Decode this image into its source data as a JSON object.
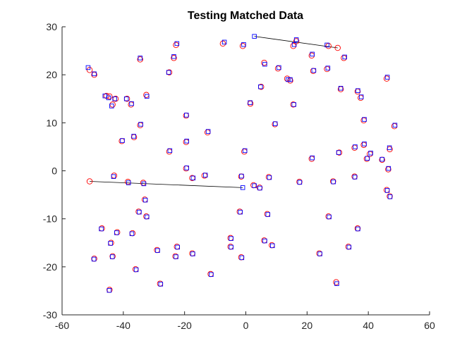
{
  "chart_data": {
    "type": "scatter",
    "title": "Testing Matched Data",
    "xlabel": "",
    "ylabel": "",
    "xlim": [
      -60,
      60
    ],
    "ylim": [
      -30,
      30
    ],
    "xticks": [
      -60,
      -40,
      -20,
      0,
      20,
      40,
      60
    ],
    "yticks": [
      -30,
      -20,
      -10,
      0,
      10,
      20,
      30
    ],
    "grid": false,
    "colors": {
      "circle_series": "#ff0000",
      "square_series": "#0000ff",
      "match_line": "#000000"
    },
    "series": [
      {
        "marker": "circle",
        "color": "#ff0000",
        "points": [
          [
            -51.0,
            21.0
          ],
          [
            -49.5,
            20.0
          ],
          [
            -44.5,
            15.5
          ],
          [
            -45.5,
            15.6
          ],
          [
            -43.5,
            13.8
          ],
          [
            -42.5,
            15.0
          ],
          [
            -38.8,
            15.0
          ],
          [
            -37.5,
            13.8
          ],
          [
            -34.5,
            23.2
          ],
          [
            -32.5,
            15.8
          ],
          [
            -25.0,
            20.5
          ],
          [
            -23.5,
            23.5
          ],
          [
            -22.8,
            26.2
          ],
          [
            -7.5,
            26.5
          ],
          [
            -1.0,
            26.0
          ],
          [
            5.0,
            17.5
          ],
          [
            6.0,
            22.5
          ],
          [
            10.5,
            21.3
          ],
          [
            13.5,
            19.2
          ],
          [
            14.5,
            18.8
          ],
          [
            15.5,
            26.0
          ],
          [
            16.5,
            27.0
          ],
          [
            21.5,
            24.0
          ],
          [
            22.0,
            20.8
          ],
          [
            26.5,
            21.2
          ],
          [
            27.0,
            26.0
          ],
          [
            32.0,
            23.5
          ],
          [
            30.0,
            25.6
          ],
          [
            31.0,
            17.0
          ],
          [
            36.5,
            16.5
          ],
          [
            37.5,
            15.2
          ],
          [
            46.0,
            19.2
          ],
          [
            15.5,
            13.8
          ],
          [
            9.5,
            9.7
          ],
          [
            1.5,
            14.0
          ],
          [
            -19.5,
            11.5
          ],
          [
            -12.5,
            8.0
          ],
          [
            -34.5,
            9.5
          ],
          [
            -36.5,
            7.0
          ],
          [
            -40.5,
            6.2
          ],
          [
            -25.0,
            4.0
          ],
          [
            -19.5,
            6.0
          ],
          [
            -0.5,
            4.0
          ],
          [
            21.5,
            2.5
          ],
          [
            30.5,
            3.8
          ],
          [
            35.5,
            4.8
          ],
          [
            38.5,
            5.4
          ],
          [
            38.5,
            10.5
          ],
          [
            40.5,
            3.5
          ],
          [
            39.5,
            2.5
          ],
          [
            48.5,
            9.3
          ],
          [
            47.0,
            4.5
          ],
          [
            44.5,
            2.3
          ],
          [
            46.5,
            0.3
          ],
          [
            -43.0,
            -1.0
          ],
          [
            -38.5,
            -2.3
          ],
          [
            -33.5,
            -2.5
          ],
          [
            -51.0,
            -2.2
          ],
          [
            -19.5,
            0.5
          ],
          [
            -17.5,
            -1.5
          ],
          [
            -13.5,
            -1.0
          ],
          [
            -1.5,
            -1.2
          ],
          [
            2.5,
            -3.0
          ],
          [
            4.5,
            -3.5
          ],
          [
            7.5,
            -1.3
          ],
          [
            17.5,
            -2.3
          ],
          [
            28.5,
            -2.2
          ],
          [
            35.5,
            -1.2
          ],
          [
            46.0,
            -4.0
          ],
          [
            47.0,
            -5.3
          ],
          [
            -33.0,
            -6.0
          ],
          [
            -35.0,
            -8.5
          ],
          [
            -32.5,
            -9.5
          ],
          [
            -2.0,
            -8.5
          ],
          [
            7.0,
            -9.0
          ],
          [
            27.0,
            -9.5
          ],
          [
            -47.0,
            -12.0
          ],
          [
            -42.0,
            -12.8
          ],
          [
            -37.0,
            -13.0
          ],
          [
            -22.5,
            -15.8
          ],
          [
            -29.0,
            -16.5
          ],
          [
            -44.0,
            -15.0
          ],
          [
            -43.5,
            -17.8
          ],
          [
            -49.5,
            -18.3
          ],
          [
            -23.0,
            -17.8
          ],
          [
            -17.5,
            -17.2
          ],
          [
            -5.0,
            -14.0
          ],
          [
            -5.0,
            -15.8
          ],
          [
            6.0,
            -14.5
          ],
          [
            8.5,
            -15.5
          ],
          [
            24.0,
            -17.2
          ],
          [
            33.5,
            -15.8
          ],
          [
            -1.5,
            -18.0
          ],
          [
            -36.0,
            -20.5
          ],
          [
            -28.0,
            -23.5
          ],
          [
            -11.5,
            -21.5
          ],
          [
            -44.5,
            -24.8
          ],
          [
            29.5,
            -23.2
          ],
          [
            36.5,
            -12.0
          ]
        ]
      },
      {
        "marker": "square",
        "color": "#0000ff",
        "points": [
          [
            -51.5,
            21.5
          ],
          [
            -49.5,
            20.2
          ],
          [
            -44.8,
            15.2
          ],
          [
            -46.0,
            15.6
          ],
          [
            -43.8,
            13.5
          ],
          [
            -42.8,
            15.0
          ],
          [
            -39.0,
            15.0
          ],
          [
            -37.3,
            14.0
          ],
          [
            -34.5,
            23.5
          ],
          [
            -32.3,
            15.5
          ],
          [
            -25.2,
            20.5
          ],
          [
            -23.5,
            23.8
          ],
          [
            -22.5,
            26.5
          ],
          [
            -7.0,
            26.8
          ],
          [
            -0.7,
            26.3
          ],
          [
            4.8,
            17.5
          ],
          [
            6.2,
            22.2
          ],
          [
            10.8,
            21.5
          ],
          [
            13.8,
            19.0
          ],
          [
            14.5,
            19.0
          ],
          [
            15.8,
            26.3
          ],
          [
            16.5,
            27.3
          ],
          [
            21.7,
            24.3
          ],
          [
            22.2,
            20.9
          ],
          [
            26.8,
            21.4
          ],
          [
            26.5,
            26.2
          ],
          [
            32.3,
            23.7
          ],
          [
            2.8,
            28.0
          ],
          [
            31.0,
            17.2
          ],
          [
            36.6,
            16.7
          ],
          [
            37.7,
            15.4
          ],
          [
            46.2,
            19.5
          ],
          [
            15.7,
            13.8
          ],
          [
            9.6,
            9.8
          ],
          [
            1.4,
            14.2
          ],
          [
            -19.4,
            11.6
          ],
          [
            -12.3,
            8.2
          ],
          [
            -34.3,
            9.7
          ],
          [
            -36.6,
            7.2
          ],
          [
            -40.3,
            6.3
          ],
          [
            -24.8,
            4.2
          ],
          [
            -19.3,
            6.2
          ],
          [
            -0.3,
            4.2
          ],
          [
            21.7,
            2.7
          ],
          [
            30.3,
            3.8
          ],
          [
            35.7,
            5.0
          ],
          [
            38.7,
            5.6
          ],
          [
            38.7,
            10.7
          ],
          [
            40.8,
            3.7
          ],
          [
            39.7,
            2.6
          ],
          [
            48.7,
            9.5
          ],
          [
            46.9,
            4.8
          ],
          [
            44.5,
            2.4
          ],
          [
            46.6,
            0.5
          ],
          [
            -43.2,
            -1.2
          ],
          [
            -38.3,
            -2.5
          ],
          [
            -33.3,
            -2.7
          ],
          [
            -1.0,
            -3.5
          ],
          [
            -19.3,
            0.6
          ],
          [
            -17.2,
            -1.5
          ],
          [
            -13.2,
            -0.9
          ],
          [
            -1.4,
            -1.1
          ],
          [
            2.8,
            -3.1
          ],
          [
            4.6,
            -3.6
          ],
          [
            7.7,
            -1.4
          ],
          [
            17.6,
            -2.4
          ],
          [
            28.6,
            -2.3
          ],
          [
            35.6,
            -1.3
          ],
          [
            46.2,
            -4.1
          ],
          [
            47.1,
            -5.4
          ],
          [
            -32.8,
            -6.1
          ],
          [
            -34.8,
            -8.6
          ],
          [
            -32.3,
            -9.6
          ],
          [
            -1.8,
            -8.6
          ],
          [
            7.2,
            -9.1
          ],
          [
            27.2,
            -9.6
          ],
          [
            -47.2,
            -12.1
          ],
          [
            -42.2,
            -12.9
          ],
          [
            -37.2,
            -13.1
          ],
          [
            -22.3,
            -15.9
          ],
          [
            -28.8,
            -16.6
          ],
          [
            -44.2,
            -15.1
          ],
          [
            -43.6,
            -17.9
          ],
          [
            -49.6,
            -18.4
          ],
          [
            -22.8,
            -17.9
          ],
          [
            -17.3,
            -17.3
          ],
          [
            -4.8,
            -14.1
          ],
          [
            -4.8,
            -15.9
          ],
          [
            6.2,
            -14.6
          ],
          [
            8.7,
            -15.6
          ],
          [
            24.2,
            -17.3
          ],
          [
            33.7,
            -15.9
          ],
          [
            -1.3,
            -18.1
          ],
          [
            -35.8,
            -20.6
          ],
          [
            -27.8,
            -23.6
          ],
          [
            -11.3,
            -21.6
          ],
          [
            -44.6,
            -24.9
          ],
          [
            29.7,
            -23.5
          ],
          [
            36.6,
            -12.1
          ]
        ]
      }
    ],
    "match_lines": [
      {
        "from": [
          2.8,
          28.0
        ],
        "to": [
          30.0,
          25.6
        ]
      },
      {
        "from": [
          -51.0,
          -2.2
        ],
        "to": [
          -1.0,
          -3.5
        ]
      }
    ]
  }
}
